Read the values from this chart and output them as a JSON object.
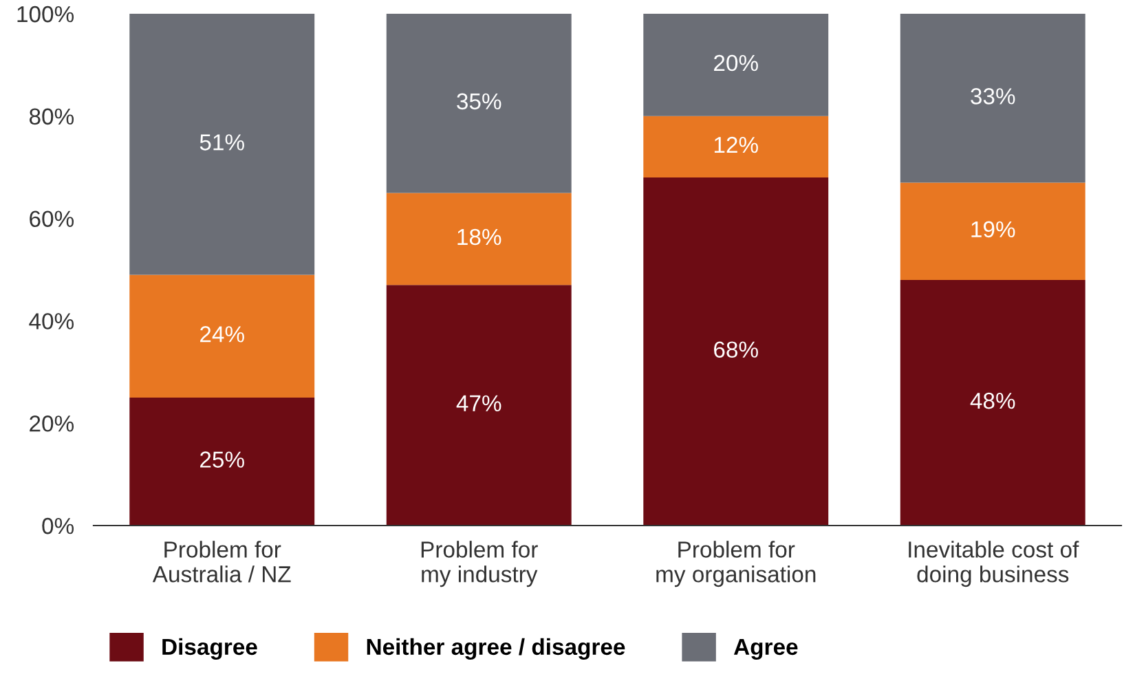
{
  "chart_data": {
    "type": "bar",
    "stacked": true,
    "categories": [
      "Problem for\nAustralia / NZ",
      "Problem for\nmy industry",
      "Problem for\nmy organisation",
      "Inevitable cost of\ndoing business"
    ],
    "series": [
      {
        "name": "Disagree",
        "color": "#6d0c14",
        "values": [
          25,
          47,
          68,
          48
        ],
        "value_labels": [
          "25%",
          "47%",
          "68%",
          "48%"
        ]
      },
      {
        "name": "Neither agree / disagree",
        "color": "#e87722",
        "values": [
          24,
          18,
          12,
          19
        ],
        "value_labels": [
          "24%",
          "18%",
          "12%",
          "19%"
        ]
      },
      {
        "name": "Agree",
        "color": "#6b6e76",
        "values": [
          51,
          35,
          20,
          33
        ],
        "value_labels": [
          "51%",
          "35%",
          "20%",
          "33%"
        ]
      }
    ],
    "ylim": [
      0,
      100
    ],
    "yticks": [
      {
        "value": 0,
        "label": "0%"
      },
      {
        "value": 20,
        "label": "20%"
      },
      {
        "value": 40,
        "label": "40%"
      },
      {
        "value": 60,
        "label": "60%"
      },
      {
        "value": 80,
        "label": "80%"
      },
      {
        "value": 100,
        "label": "100%"
      }
    ],
    "grid": false,
    "legend": "bottom left"
  }
}
